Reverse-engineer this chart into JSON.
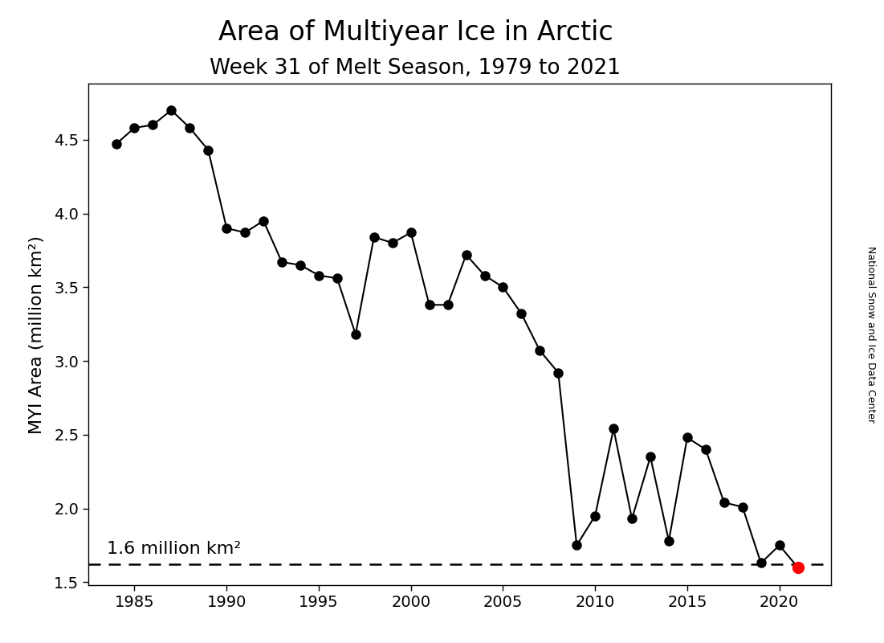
{
  "title_line1": "Area of Multiyear Ice in Arctic",
  "title_line2": "Week 31 of Melt Season, 1979 to 2021",
  "ylabel": "MYI Area (million km²)",
  "watermark": "National Snow and Ice Data Center",
  "dashed_line_value": 1.62,
  "dashed_line_label": "1.6 million km²",
  "ylim": [
    1.48,
    4.88
  ],
  "xlim": [
    1982.5,
    2022.8
  ],
  "yticks": [
    1.5,
    2.0,
    2.5,
    3.0,
    3.5,
    4.0,
    4.5
  ],
  "xticks": [
    1985,
    1990,
    1995,
    2000,
    2005,
    2010,
    2015,
    2020
  ],
  "years": [
    1984,
    1985,
    1986,
    1987,
    1988,
    1989,
    1990,
    1991,
    1992,
    1993,
    1994,
    1995,
    1996,
    1997,
    1998,
    1999,
    2000,
    2001,
    2002,
    2003,
    2004,
    2005,
    2006,
    2007,
    2008,
    2009,
    2010,
    2011,
    2012,
    2013,
    2014,
    2015,
    2016,
    2017,
    2018,
    2019,
    2020,
    2021
  ],
  "values": [
    4.47,
    4.58,
    4.6,
    4.7,
    4.58,
    4.43,
    3.9,
    3.87,
    3.95,
    3.67,
    3.65,
    3.58,
    3.56,
    3.18,
    3.84,
    3.8,
    3.87,
    3.38,
    3.38,
    3.72,
    3.58,
    3.5,
    3.32,
    3.07,
    2.92,
    1.75,
    1.95,
    2.54,
    1.93,
    2.35,
    1.78,
    2.48,
    2.4,
    2.04,
    2.01,
    1.63,
    1.75,
    1.6
  ],
  "highlight_year": 2021,
  "highlight_value": 1.6,
  "line_color": "#000000",
  "highlight_color": "#ff0000",
  "marker_color": "#000000",
  "background_color": "#ffffff",
  "title_fontsize": 24,
  "subtitle_fontsize": 19,
  "label_fontsize": 16,
  "tick_fontsize": 14,
  "annotation_fontsize": 16,
  "watermark_fontsize": 9
}
